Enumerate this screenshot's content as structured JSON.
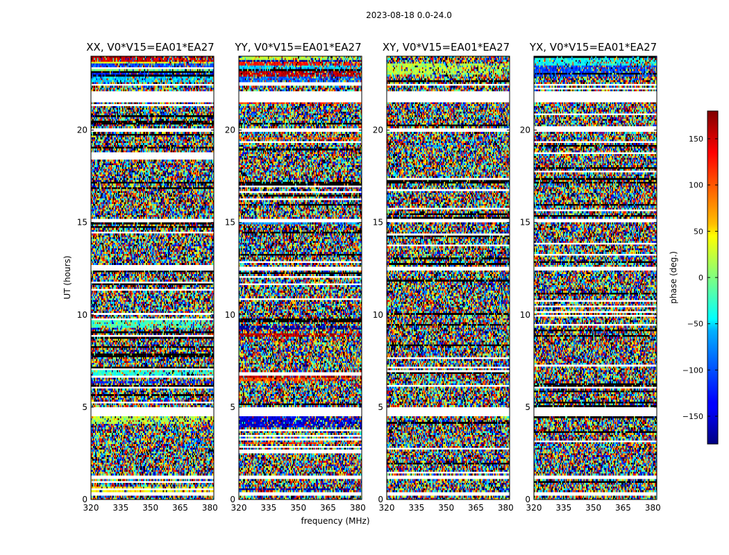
{
  "figure_title": "2023-08-18 0.0-24.0",
  "chart_data": {
    "type": "heatmap",
    "title": "2023-08-18 0.0-24.0",
    "xlabel": "frequency (MHz)",
    "ylabel": "UT (hours)",
    "xlim": [
      320,
      382
    ],
    "ylim": [
      0,
      24
    ],
    "x_ticks": [
      320,
      335,
      350,
      365,
      380
    ],
    "y_ticks": [
      0,
      5,
      10,
      15,
      20
    ],
    "panels": [
      {
        "title": "XX, V0*V15=EA01*EA27",
        "coherent_bands": [
          {
            "t0": 22.6,
            "t1": 22.9,
            "phase": -60
          },
          {
            "t0": 22.9,
            "t1": 23.2,
            "phase": -120
          },
          {
            "t0": 23.2,
            "t1": 23.4,
            "phase": 0
          },
          {
            "t0": 23.4,
            "t1": 23.6,
            "phase": -110
          },
          {
            "t0": 23.6,
            "t1": 23.75,
            "phase": 40
          },
          {
            "t0": 23.75,
            "t1": 23.9,
            "phase": 150
          },
          {
            "t0": 23.9,
            "t1": 24.0,
            "phase": 170
          },
          {
            "t0": 9.3,
            "t1": 9.8,
            "phase": -20
          },
          {
            "t0": 6.6,
            "t1": 7.1,
            "phase": -30
          },
          {
            "t0": 6.3,
            "t1": 6.45,
            "phase": -130
          },
          {
            "t0": 4.1,
            "t1": 4.5,
            "phase": 20
          },
          {
            "t0": 0.4,
            "t1": 0.7,
            "phase": 50
          }
        ]
      },
      {
        "title": "YY, V0*V15=EA01*EA27",
        "coherent_bands": [
          {
            "t0": 22.6,
            "t1": 22.9,
            "phase": -100
          },
          {
            "t0": 22.9,
            "t1": 23.2,
            "phase": 160
          },
          {
            "t0": 23.2,
            "t1": 23.5,
            "phase": -60
          },
          {
            "t0": 23.5,
            "t1": 23.7,
            "phase": 130
          },
          {
            "t0": 23.7,
            "t1": 23.85,
            "phase": -170
          },
          {
            "t0": 23.85,
            "t1": 24.0,
            "phase": 20
          },
          {
            "t0": 21.4,
            "t1": 21.5,
            "phase": 120
          },
          {
            "t0": 19.5,
            "t1": 19.6,
            "phase": 100
          },
          {
            "t0": 14.9,
            "t1": 15.0,
            "phase": -80
          },
          {
            "t0": 9.2,
            "t1": 9.4,
            "phase": -170
          },
          {
            "t0": 8.8,
            "t1": 9.0,
            "phase": 160
          },
          {
            "t0": 6.6,
            "t1": 6.9,
            "phase": 165
          },
          {
            "t0": 6.4,
            "t1": 6.6,
            "phase": 110
          },
          {
            "t0": 3.9,
            "t1": 4.5,
            "phase": -150
          },
          {
            "t0": 3.0,
            "t1": 3.1,
            "phase": 120
          },
          {
            "t0": 0.5,
            "t1": 0.6,
            "phase": -170
          }
        ]
      },
      {
        "title": "XY, V0*V15=EA01*EA27",
        "coherent_bands": [
          {
            "t0": 23.0,
            "t1": 23.6,
            "phase": 20
          },
          {
            "t0": 15.0,
            "t1": 15.1,
            "phase": 120
          },
          {
            "t0": 9.4,
            "t1": 9.5,
            "phase": 60
          }
        ]
      },
      {
        "title": "YX, V0*V15=EA01*EA27",
        "coherent_bands": [
          {
            "t0": 22.9,
            "t1": 23.5,
            "phase": -110
          },
          {
            "t0": 23.5,
            "t1": 24.0,
            "phase": -40
          }
        ]
      }
    ],
    "flagged_gaps": [
      [
        0.25,
        0.35
      ],
      [
        1.15,
        1.35
      ],
      [
        2.95,
        3.05
      ],
      [
        4.55,
        5.0
      ],
      [
        12.45,
        12.6
      ],
      [
        15.05,
        15.15
      ],
      [
        19.95,
        20.05
      ],
      [
        21.5,
        22.1
      ],
      [
        22.4,
        22.5
      ]
    ],
    "colorbar": {
      "label": "phase (deg.)",
      "range": [
        -180,
        180
      ],
      "ticks": [
        -150,
        -100,
        -50,
        0,
        50,
        100,
        150
      ],
      "tick_labels": [
        "−150",
        "−100",
        "−50",
        "0",
        "50",
        "100",
        "150"
      ],
      "colormap": "jet"
    }
  }
}
